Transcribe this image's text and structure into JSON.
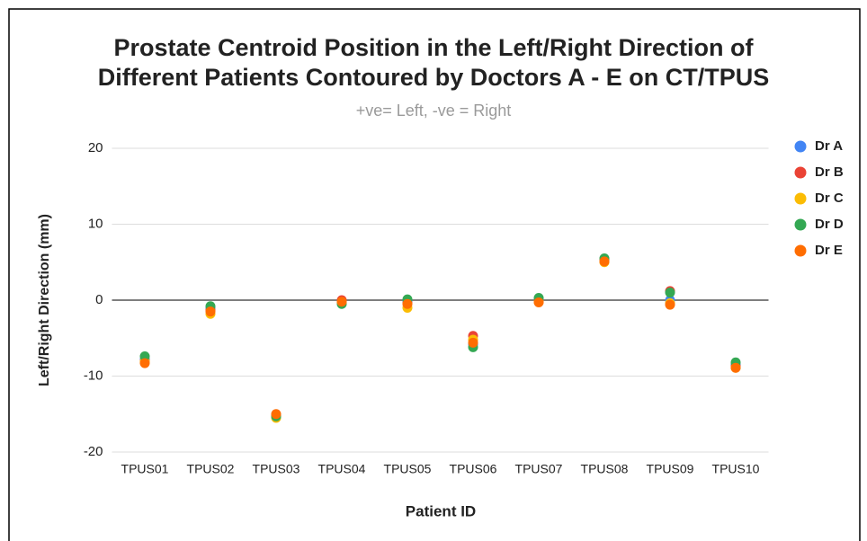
{
  "chart_data": {
    "type": "scatter",
    "title": [
      "Prostate Centroid Position in the Left/Right Direction of",
      "Different Patients Contoured by Doctors A - E on CT/TPUS"
    ],
    "subtitle": "+ve= Left, -ve = Right",
    "x_label": "Patient ID",
    "y_label": "Left/Right Direction (mm)",
    "categories": [
      "TPUS01",
      "TPUS02",
      "TPUS03",
      "TPUS04",
      "TPUS05",
      "TPUS06",
      "TPUS07",
      "TPUS08",
      "TPUS09",
      "TPUS10"
    ],
    "series": [
      {
        "name": "Dr A",
        "color": "#4285f4",
        "values": [
          -7.8,
          -1.0,
          -15.2,
          -0.1,
          -0.2,
          -5.8,
          0.1,
          5.2,
          0,
          -8.5
        ]
      },
      {
        "name": "Dr B",
        "color": "#ea4335",
        "values": [
          -8.0,
          -1.3,
          -15.1,
          0,
          -0.4,
          -4.7,
          -0.1,
          5.4,
          1.2,
          -8.7
        ]
      },
      {
        "name": "Dr C",
        "color": "#fbbc04",
        "values": [
          -8.1,
          -1.8,
          -15.5,
          -0.3,
          -1.0,
          -5.2,
          -0.2,
          5.0,
          -0.4,
          -8.9
        ]
      },
      {
        "name": "Dr D",
        "color": "#34a853",
        "values": [
          -7.4,
          -0.8,
          -15.3,
          -0.5,
          0.1,
          -6.2,
          0.3,
          5.5,
          1.0,
          -8.2
        ]
      },
      {
        "name": "Dr E",
        "color": "#ff6d01",
        "values": [
          -8.3,
          -1.5,
          -15.0,
          -0.2,
          -0.5,
          -5.6,
          -0.3,
          5.1,
          -0.6,
          -8.9
        ]
      }
    ],
    "ylim": [
      -20,
      20
    ],
    "yticks": [
      -20,
      -10,
      0,
      10,
      20
    ],
    "grid": true,
    "legend": "right"
  }
}
